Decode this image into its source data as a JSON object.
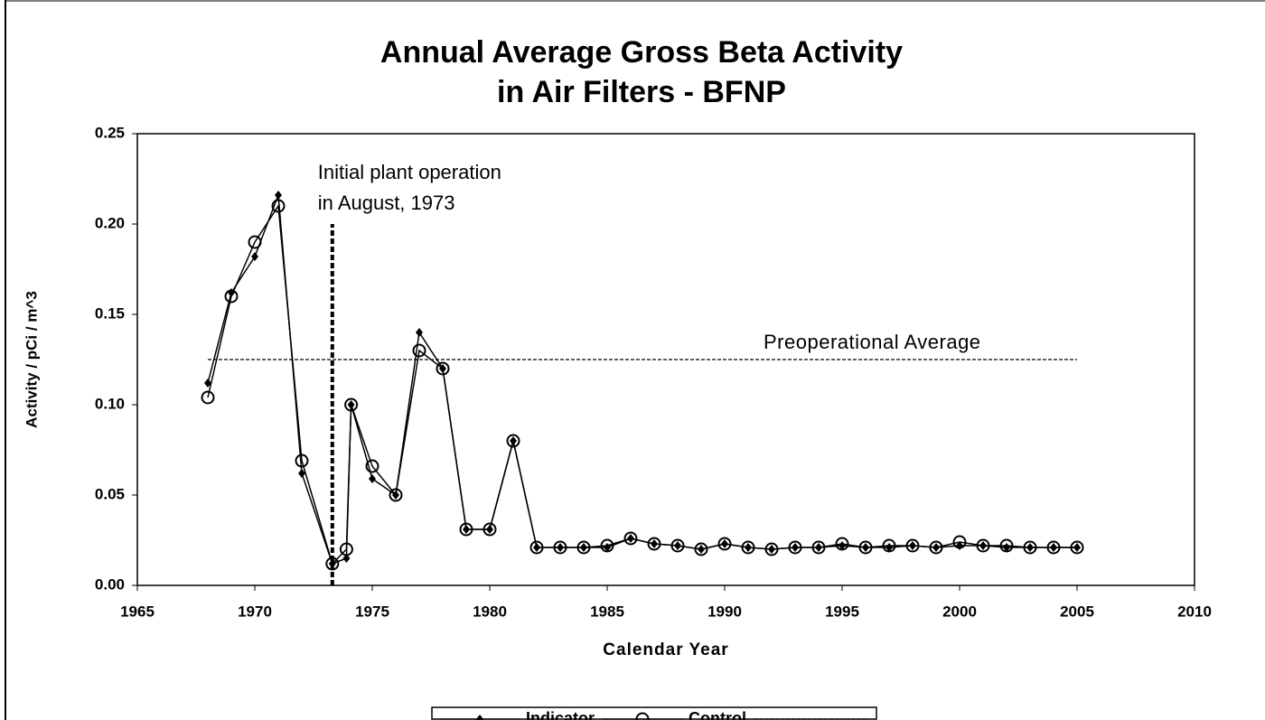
{
  "chart_data": {
    "type": "line",
    "title_lines": [
      "Annual Average Gross Beta Activity",
      "in Air Filters - BFNP"
    ],
    "xlabel": "Calendar Year",
    "ylabel": "Activity / pCi / m^3",
    "xlim": [
      1965,
      2010
    ],
    "xticks": [
      1965,
      1970,
      1975,
      1980,
      1985,
      1990,
      1995,
      2000,
      2005,
      2010
    ],
    "ylim": [
      0,
      0.25
    ],
    "yticks": [
      {
        "value": 0,
        "label": "0.00"
      },
      {
        "value": 0.05,
        "label": "0.05"
      },
      {
        "value": 0.1,
        "label": "0.10"
      },
      {
        "value": 0.15,
        "label": "0.15"
      },
      {
        "value": 0.2,
        "label": "0.20"
      },
      {
        "value": 0.25,
        "label": "0.25"
      }
    ],
    "grid": false,
    "series": [
      {
        "name": "Indicator",
        "color": "#000000",
        "marker": "diamond",
        "x": [
          1968,
          1969,
          1970,
          1971,
          1972,
          1973.3,
          1973.9,
          1974.1,
          1975,
          1976,
          1977,
          1978,
          1979,
          1980,
          1981,
          1982,
          1983,
          1984,
          1985,
          1986,
          1987,
          1988,
          1989,
          1990,
          1991,
          1992,
          1993,
          1994,
          1995,
          1996,
          1997,
          1998,
          1999,
          2000,
          2001,
          2002,
          2003,
          2004,
          2005
        ],
        "values": [
          0.112,
          0.162,
          0.182,
          0.216,
          0.062,
          0.012,
          0.015,
          0.1,
          0.059,
          0.05,
          0.14,
          0.12,
          0.031,
          0.031,
          0.08,
          0.021,
          0.021,
          0.021,
          0.021,
          0.026,
          0.023,
          0.022,
          0.02,
          0.023,
          0.021,
          0.02,
          0.021,
          0.021,
          0.022,
          0.021,
          0.021,
          0.022,
          0.021,
          0.022,
          0.022,
          0.021,
          0.021,
          0.021,
          0.021
        ]
      },
      {
        "name": "Control",
        "color": "#000000",
        "marker": "circle",
        "x": [
          1968,
          1969,
          1970,
          1971,
          1972,
          1973.3,
          1973.9,
          1974.1,
          1975,
          1976,
          1977,
          1978,
          1979,
          1980,
          1981,
          1982,
          1983,
          1984,
          1985,
          1986,
          1987,
          1988,
          1989,
          1990,
          1991,
          1992,
          1993,
          1994,
          1995,
          1996,
          1997,
          1998,
          1999,
          2000,
          2001,
          2002,
          2003,
          2004,
          2005
        ],
        "values": [
          0.104,
          0.16,
          0.19,
          0.21,
          0.069,
          0.012,
          0.02,
          0.1,
          0.066,
          0.05,
          0.13,
          0.12,
          0.031,
          0.031,
          0.08,
          0.021,
          0.021,
          0.021,
          0.022,
          0.026,
          0.023,
          0.022,
          0.02,
          0.023,
          0.021,
          0.02,
          0.021,
          0.021,
          0.023,
          0.021,
          0.022,
          0.022,
          0.021,
          0.024,
          0.022,
          0.022,
          0.021,
          0.021,
          0.021
        ]
      },
      {
        "name": "Preoperational Average",
        "color": "#000000",
        "marker": "none",
        "dashed": true,
        "x": [
          1968,
          2005
        ],
        "values": [
          0.125,
          0.125
        ]
      }
    ],
    "operation_line": {
      "x": 1973.3,
      "top": 0.2,
      "label_lines": [
        "Initial plant operation",
        "in August, 1973"
      ]
    }
  }
}
